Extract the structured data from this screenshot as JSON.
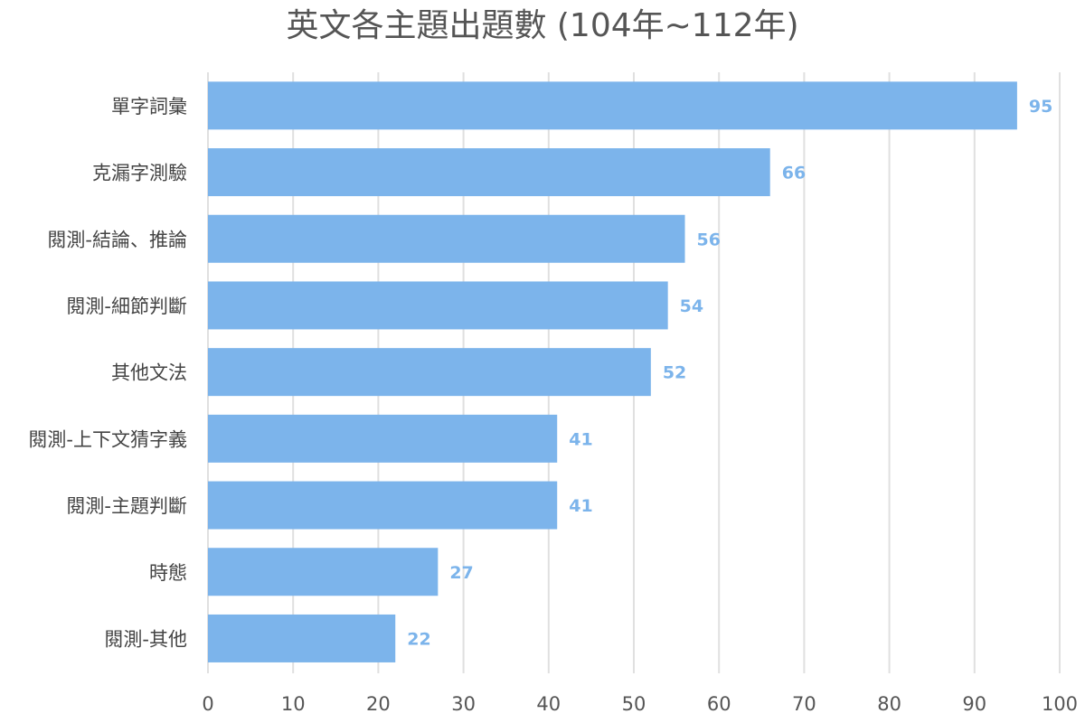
{
  "chart_data": {
    "type": "bar",
    "orientation": "horizontal",
    "title": "英文各主題出題數 (104年~112年)",
    "categories": [
      "單字詞彙",
      "克漏字測驗",
      "閱測-結論、推論",
      "閱測-細節判斷",
      "其他文法",
      "閱測-上下文猜字義",
      "閱測-主題判斷",
      "時態",
      "閱測-其他"
    ],
    "values": [
      95,
      66,
      56,
      54,
      52,
      41,
      41,
      27,
      22
    ],
    "xlim": [
      0,
      100
    ],
    "xticks": [
      0,
      10,
      20,
      30,
      40,
      50,
      60,
      70,
      80,
      90,
      100
    ],
    "xlabel": "",
    "ylabel": "",
    "grid": true,
    "data_labels": true,
    "bar_color": "#7cb4eb",
    "label_color": "#7cb4eb"
  }
}
